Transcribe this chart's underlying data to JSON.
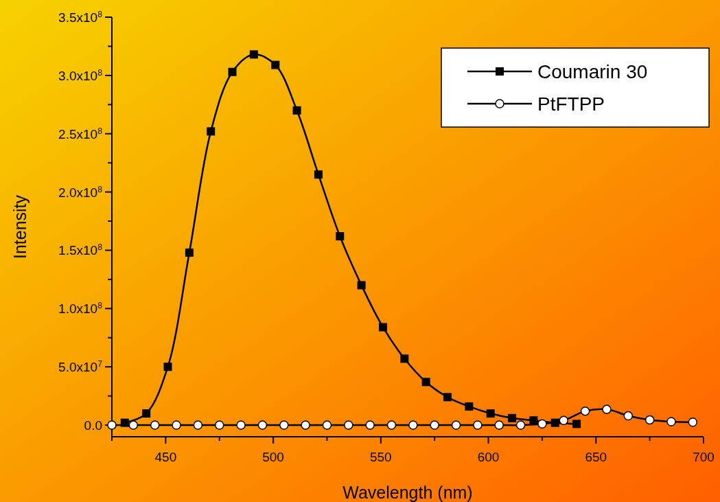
{
  "chart_data": {
    "type": "line",
    "xlabel": "Wavelength (nm)",
    "ylabel": "Intensity",
    "xlim": [
      425,
      700
    ],
    "ylim": [
      -10000000,
      350000000
    ],
    "xticks": [
      {
        "value": 425,
        "label": null
      },
      450,
      {
        "value": 475,
        "label": null
      },
      500,
      {
        "value": 525,
        "label": null
      },
      550,
      {
        "value": 575,
        "label": null
      },
      600,
      {
        "value": 625,
        "label": null
      },
      650,
      {
        "value": 675,
        "label": null
      },
      700
    ],
    "yticks": [
      {
        "value": 0,
        "label": "0.0"
      },
      {
        "value": 25000000,
        "label": null
      },
      {
        "value": 50000000,
        "label": "5.0x10$^{7}$"
      },
      {
        "value": 75000000,
        "label": null
      },
      {
        "value": 100000000,
        "label": "1.0x10$^{8}$"
      },
      {
        "value": 125000000,
        "label": null
      },
      {
        "value": 150000000,
        "label": "1.5x10$^{8}$"
      },
      {
        "value": 175000000,
        "label": null
      },
      {
        "value": 200000000,
        "label": "2.0x10$^{8}$"
      },
      {
        "value": 225000000,
        "label": null
      },
      {
        "value": 250000000,
        "label": "2.5x10$^{8}$"
      },
      {
        "value": 275000000,
        "label": null
      },
      {
        "value": 300000000,
        "label": "3.0x10$^{8}$"
      },
      {
        "value": 325000000,
        "label": null
      },
      {
        "value": 350000000,
        "label": "3.5x10$^{8}$"
      }
    ],
    "legend": "top right",
    "line_style": "solid",
    "series": [
      {
        "name": "Coumarin 30",
        "color": "#000000",
        "marker": "square",
        "x": [
          431,
          441,
          451,
          461,
          471,
          481,
          491,
          501,
          511,
          521,
          531,
          541,
          551,
          561,
          571,
          581,
          591,
          601,
          611,
          621,
          631,
          641
        ],
        "values": [
          2000000,
          10000000,
          50000000,
          148000000,
          252000000,
          303000000,
          318000000,
          309000000,
          270000000,
          215000000,
          162000000,
          120000000,
          84000000,
          57000000,
          37000000,
          24000000,
          16000000,
          10000000,
          6000000,
          4000000,
          2000000,
          1000000
        ]
      },
      {
        "name": "PtFTPP",
        "color": "#000000",
        "marker": "circle",
        "x": [
          425,
          435,
          445,
          455,
          465,
          475,
          485,
          495,
          505,
          515,
          525,
          535,
          545,
          555,
          565,
          575,
          585,
          595,
          605,
          615,
          625,
          635,
          645,
          655,
          665,
          675,
          685,
          695
        ],
        "values": [
          0,
          0,
          0,
          0,
          0,
          0,
          0,
          0,
          0,
          0,
          0,
          0,
          0,
          0,
          0,
          0,
          0,
          0,
          0,
          0,
          1000000,
          4000000,
          12000000,
          13500000,
          8000000,
          4500000,
          3000000,
          2500000
        ]
      }
    ]
  }
}
